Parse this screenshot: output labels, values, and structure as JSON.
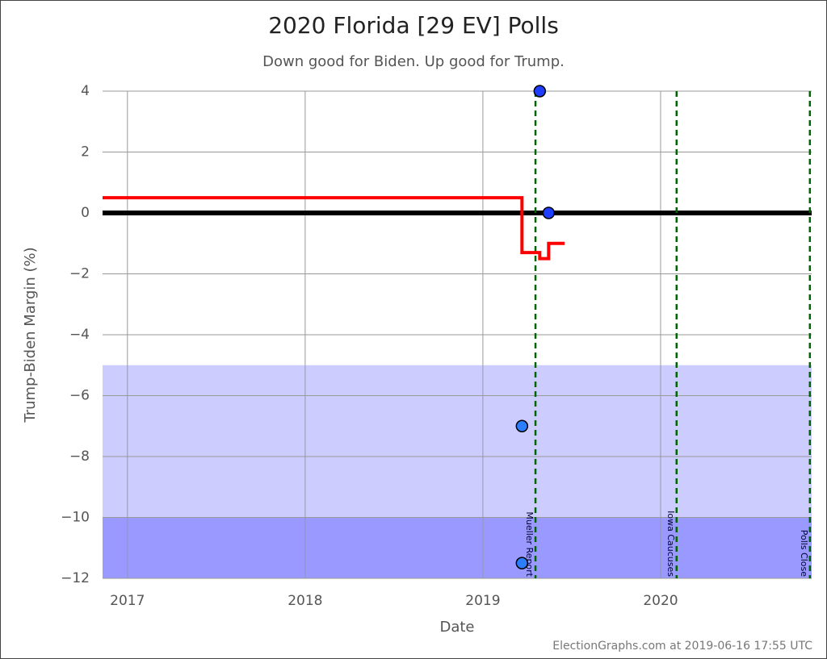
{
  "chart_data": {
    "type": "scatter",
    "title": "2020 Florida [29 EV] Polls",
    "subtitle": "Down good for Biden. Up good for Trump.",
    "x_label": "Date",
    "y_label": "Trump-Biden Margin (%)",
    "footer": "ElectionGraphs.com at 2019-06-16 17:55 UTC",
    "xlim": [
      2016.86,
      2020.85
    ],
    "xticks": [
      2017,
      2018,
      2019,
      2020
    ],
    "ylim": [
      -12,
      4
    ],
    "yticks": [
      {
        "value": -12,
        "label": "−12"
      },
      {
        "value": -10,
        "label": "−10"
      },
      {
        "value": -8,
        "label": "−8"
      },
      {
        "value": -6,
        "label": "−6"
      },
      {
        "value": -4,
        "label": "−4"
      },
      {
        "value": -2,
        "label": "−2"
      },
      0,
      2,
      4
    ],
    "grid": true,
    "bands": [
      {
        "range": [
          -10,
          -5
        ],
        "color": "#ccccff"
      },
      {
        "range": [
          -12,
          -10
        ],
        "color": "#9999ff"
      }
    ],
    "hline": {
      "value": 0,
      "color": "#000000"
    },
    "polls": {
      "x": [
        2019.22,
        2019.22,
        2019.32,
        2019.37
      ],
      "values": [
        -7,
        -11.5,
        4,
        0
      ],
      "colors": [
        "#2b7fff",
        "#2b7fff",
        "#1f3dff",
        "#1f3dff"
      ]
    },
    "average": {
      "x": [
        2016.86,
        2019.22,
        2019.32,
        2019.37,
        2019.46
      ],
      "values": [
        0.5,
        -1.3,
        -1.5,
        -1,
        -1
      ],
      "color": "#ff0000"
    },
    "events": [
      {
        "x": 2019.296,
        "label": "Mueller Report"
      },
      {
        "x": 2020.09,
        "label": "Iowa Caucuses"
      },
      {
        "x": 2020.84,
        "label": "Polls Close"
      }
    ],
    "event_color": "#006400"
  }
}
